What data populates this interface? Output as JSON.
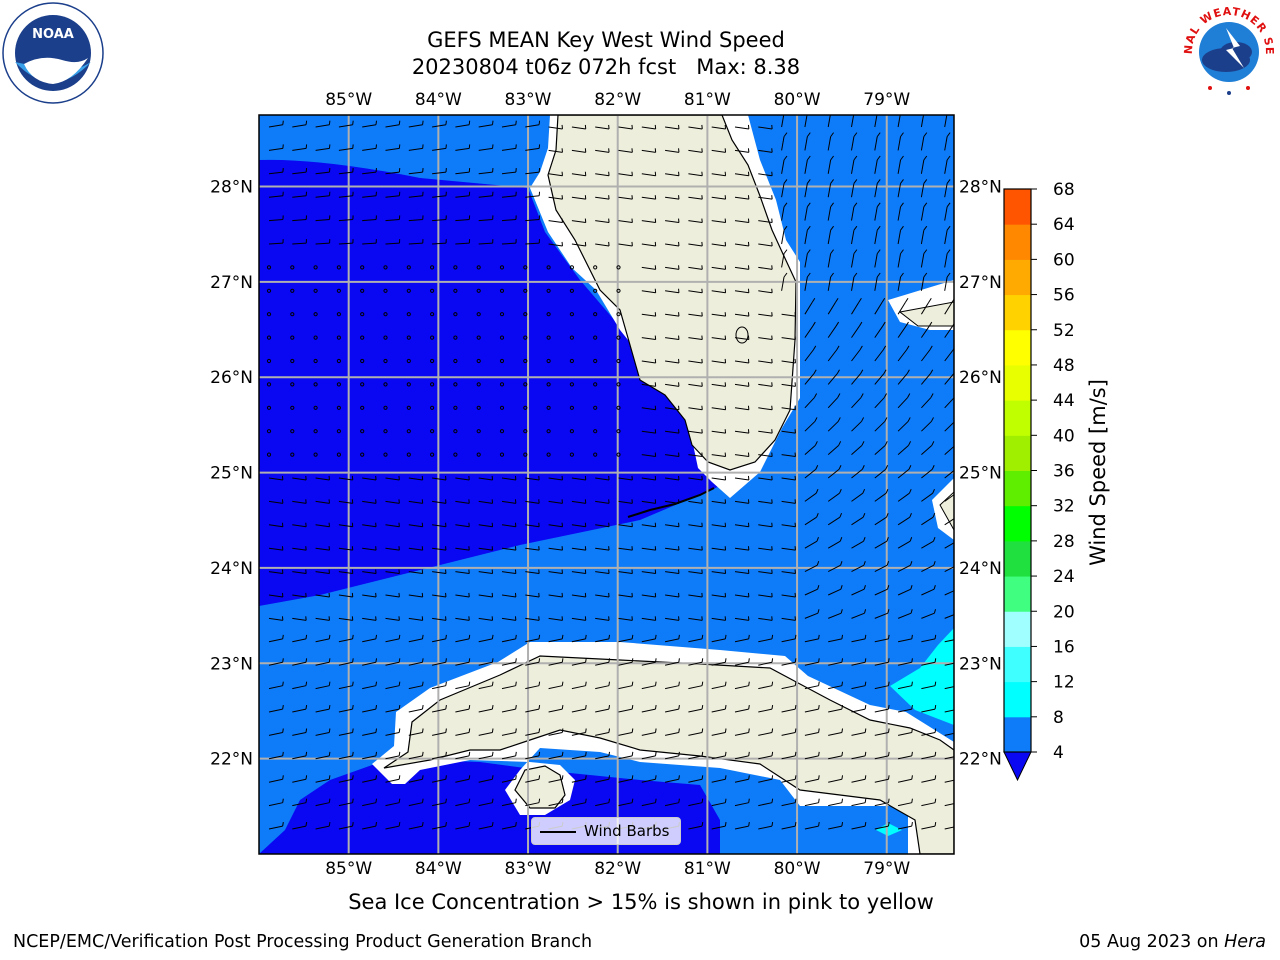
{
  "title": {
    "line1": "GEFS MEAN Key West Wind Speed",
    "line2": "20230804 t06z 072h fcst   Max: 8.38"
  },
  "map": {
    "extent": {
      "lon_min": -86.0,
      "lon_max": -78.25,
      "lat_min": 21.0,
      "lat_max": 28.75
    },
    "lon_ticks": [
      {
        "value": -85,
        "label": "85°W"
      },
      {
        "value": -84,
        "label": "84°W"
      },
      {
        "value": -83,
        "label": "83°W"
      },
      {
        "value": -82,
        "label": "82°W"
      },
      {
        "value": -81,
        "label": "81°W"
      },
      {
        "value": -80,
        "label": "80°W"
      },
      {
        "value": -79,
        "label": "79°W"
      }
    ],
    "lat_ticks": [
      {
        "value": 28,
        "label": "28°N"
      },
      {
        "value": 27,
        "label": "27°N"
      },
      {
        "value": 26,
        "label": "26°N"
      },
      {
        "value": 25,
        "label": "25°N"
      },
      {
        "value": 24,
        "label": "24°N"
      },
      {
        "value": 23,
        "label": "23°N"
      },
      {
        "value": 22,
        "label": "22°N"
      }
    ],
    "gridlines": true,
    "colors": {
      "speed_lt4": "#0a07f2",
      "speed_4_8": "#0e7cf9",
      "speed_8_12": "#00ffff",
      "land": "#eeeedd",
      "coast_buffer": "#ffffff",
      "grid": "#b0b0b0"
    },
    "legend": {
      "label": "Wind Barbs",
      "placement": "lower-center"
    }
  },
  "colorbar": {
    "title": "Wind Speed [m/s]",
    "levels": [
      4,
      8,
      12,
      16,
      20,
      24,
      28,
      32,
      36,
      40,
      44,
      48,
      52,
      56,
      60,
      64,
      68
    ],
    "colors": [
      "#0e7cf9",
      "#00ffff",
      "#40ffff",
      "#a0ffff",
      "#40ff80",
      "#20e040",
      "#00ff00",
      "#60ee00",
      "#a0ee00",
      "#c0ff00",
      "#e8ff00",
      "#ffff00",
      "#ffd200",
      "#ffaa00",
      "#ff8800",
      "#ff5500",
      "#ff2200",
      "#ff0000"
    ],
    "under_color": "#0a07f2",
    "extend": "min"
  },
  "logos": {
    "noaa": {
      "text": "NOAA"
    },
    "nws": {
      "text": "NATIONAL WEATHER SERVICE"
    }
  },
  "sea_ice_note": "Sea Ice Concentration > 15% is shown in pink to yellow",
  "footer": {
    "left": "NCEP/EMC/Verification Post Processing Product Generation Branch",
    "right_date": "05 Aug 2023 on ",
    "right_machine": "Hera"
  }
}
